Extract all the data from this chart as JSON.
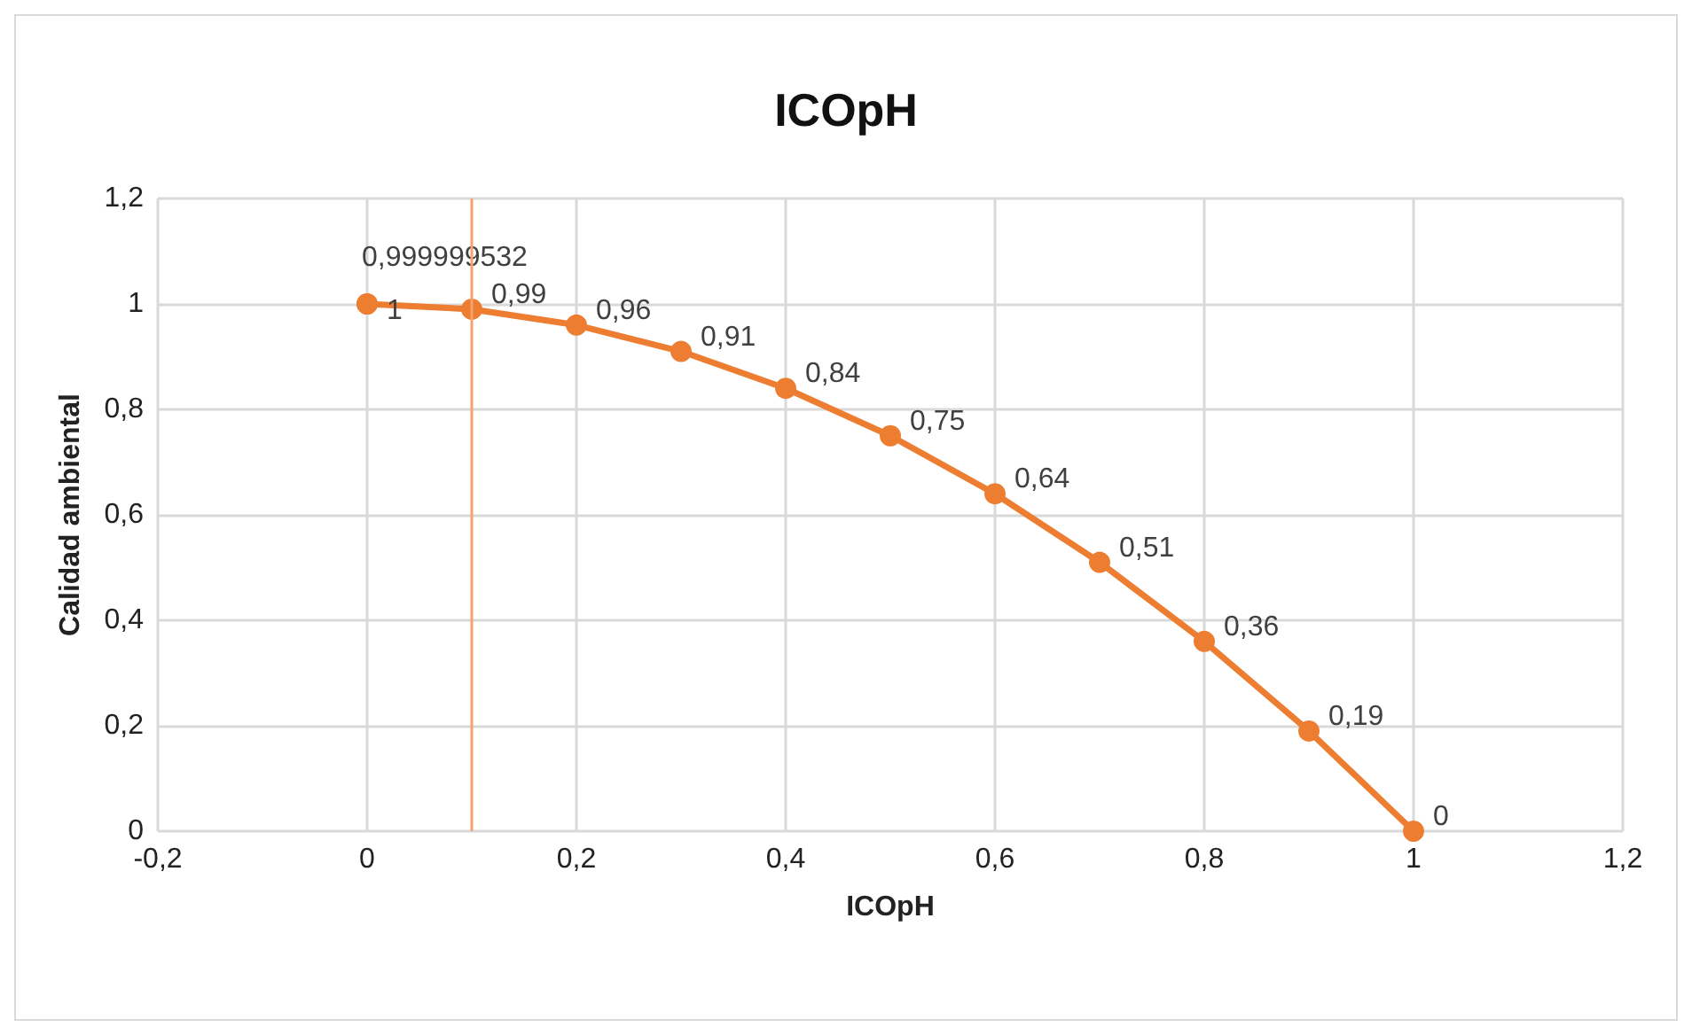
{
  "chart_data": {
    "type": "line",
    "title": "ICOpH",
    "xlabel": "ICOpH",
    "ylabel": "Calidad ambiental",
    "series": [
      {
        "color": "#ed7d31",
        "x": [
          0,
          0,
          0.1,
          0.2,
          0.3,
          0.4,
          0.5,
          0.6,
          0.7,
          0.8,
          0.9,
          1
        ],
        "values": [
          1,
          0.999999532,
          0.99,
          0.96,
          0.91,
          0.84,
          0.75,
          0.64,
          0.51,
          0.36,
          0.19,
          0
        ],
        "value_labels": [
          "1",
          "0,999999532",
          "0,99",
          "0,96",
          "0,91",
          "0,84",
          "0,75",
          "0,64",
          "0,51",
          "0,36",
          "0,19",
          "0"
        ]
      }
    ],
    "ref_lines": [
      {
        "axis": "x",
        "value": 0.1,
        "color": "#f4a46c"
      }
    ],
    "xlim": [
      -0.2,
      1.2
    ],
    "xticks": [
      {
        "value": -0.2,
        "label": "-0,2"
      },
      0,
      {
        "value": 0.2,
        "label": "0,2"
      },
      {
        "value": 0.4,
        "label": "0,4"
      },
      {
        "value": 0.6,
        "label": "0,6"
      },
      {
        "value": 0.8,
        "label": "0,8"
      },
      1,
      {
        "value": 1.2,
        "label": "1,2"
      }
    ],
    "ylim": [
      0,
      1.2
    ],
    "yticks": [
      0,
      {
        "value": 0.2,
        "label": "0,2"
      },
      {
        "value": 0.4,
        "label": "0,4"
      },
      {
        "value": 0.6,
        "label": "0,6"
      },
      {
        "value": 0.8,
        "label": "0,8"
      },
      1,
      {
        "value": 1.2,
        "label": "1,2"
      }
    ],
    "grid": true,
    "marker": "circle",
    "line_style": "solid"
  }
}
